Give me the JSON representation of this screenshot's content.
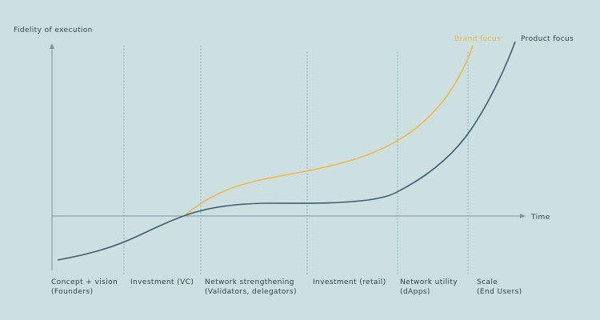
{
  "y_axis_label": "Fidelity of execution",
  "x_axis_label": "Time",
  "curves": [
    {
      "label": "Brand focus"
    },
    {
      "label": "Product focus"
    }
  ],
  "phases": [
    {
      "lines": [
        "Concept + vision",
        "(Founders)"
      ]
    },
    {
      "lines": [
        "Investment (VC)"
      ]
    },
    {
      "lines": [
        "Network strengthening",
        "(Validators, delegators)"
      ]
    },
    {
      "lines": [
        "Investment (retail)"
      ]
    },
    {
      "lines": [
        "Network utility",
        "(dApps)"
      ]
    },
    {
      "lines": [
        "Scale",
        "(End Users)"
      ]
    }
  ]
}
